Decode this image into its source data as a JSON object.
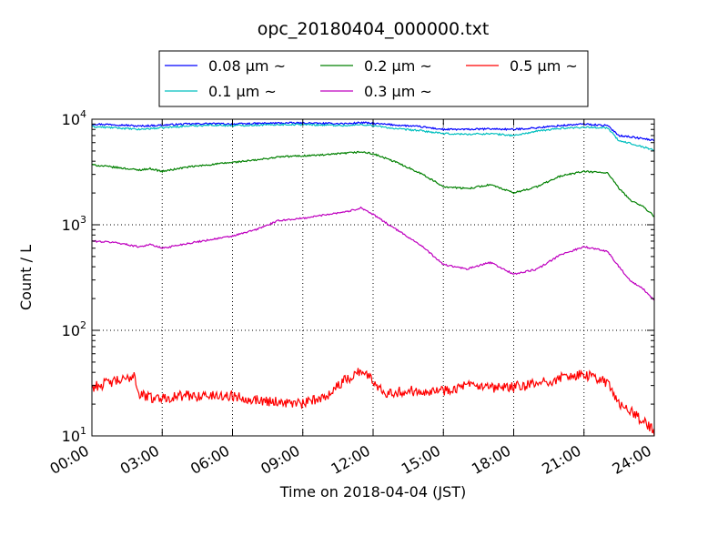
{
  "chart_data": {
    "type": "line",
    "title": "opc_20180404_000000.txt",
    "xlabel": "Time on 2018-04-04 (JST)",
    "ylabel": "Count / L",
    "x_ticks": [
      "00:00",
      "03:00",
      "06:00",
      "09:00",
      "12:00",
      "15:00",
      "18:00",
      "21:00",
      "24:00"
    ],
    "y_scale": "log",
    "y_ticks": [
      {
        "base": "10",
        "exp": "1",
        "value": 10
      },
      {
        "base": "10",
        "exp": "2",
        "value": 100
      },
      {
        "base": "10",
        "exp": "3",
        "value": 1000
      },
      {
        "base": "10",
        "exp": "4",
        "value": 10000
      }
    ],
    "xlim_hours": [
      0,
      24
    ],
    "ylim": [
      10,
      10000
    ],
    "grid": true,
    "legend_position": "top-center",
    "series": [
      {
        "name": "0.08 μm ~",
        "color": "#0000ff",
        "x_hours": [
          0,
          1,
          2,
          3,
          4,
          5,
          6,
          7,
          8,
          9,
          10,
          11,
          11.5,
          12,
          13,
          14,
          15,
          16,
          17,
          18,
          19,
          20,
          21,
          22,
          22.5,
          23,
          24
        ],
        "values": [
          9000,
          8900,
          8600,
          8800,
          9000,
          9100,
          9000,
          9100,
          9200,
          9200,
          9100,
          9100,
          9300,
          9100,
          8800,
          8500,
          8000,
          8000,
          8100,
          8000,
          8300,
          8700,
          9000,
          8700,
          7000,
          6800,
          6300
        ]
      },
      {
        "name": "0.1 μm ~",
        "color": "#00bfbf",
        "x_hours": [
          0,
          1,
          2,
          3,
          4,
          5,
          6,
          7,
          8,
          9,
          10,
          11,
          11.5,
          12,
          13,
          14,
          15,
          16,
          17,
          18,
          19,
          20,
          21,
          22,
          22.5,
          23,
          24
        ],
        "values": [
          8500,
          8300,
          8000,
          8300,
          8600,
          8800,
          8700,
          8800,
          8900,
          8900,
          8800,
          8700,
          8900,
          8700,
          8100,
          7800,
          7300,
          7200,
          7300,
          7000,
          7700,
          8200,
          8400,
          8300,
          6200,
          5900,
          5100
        ]
      },
      {
        "name": "0.2 μm ~",
        "color": "#008000",
        "x_hours": [
          0,
          1,
          2,
          2.5,
          3,
          4,
          5,
          6,
          7,
          8,
          9,
          10,
          11,
          11.5,
          12,
          13,
          14,
          15,
          16,
          17,
          18,
          19,
          20,
          21,
          22,
          22.5,
          23,
          23.5,
          24
        ],
        "values": [
          3700,
          3500,
          3300,
          3400,
          3200,
          3500,
          3700,
          3900,
          4100,
          4400,
          4500,
          4600,
          4800,
          4900,
          4700,
          3900,
          3100,
          2300,
          2200,
          2400,
          2000,
          2300,
          2900,
          3200,
          3100,
          2200,
          1700,
          1500,
          1200
        ]
      },
      {
        "name": "0.3 μm ~",
        "color": "#bf00bf",
        "x_hours": [
          0,
          1,
          2,
          2.5,
          3,
          4,
          5,
          6,
          7,
          8,
          9,
          10,
          11,
          11.5,
          12,
          13,
          14,
          15,
          16,
          17,
          18,
          19,
          20,
          21,
          22,
          22.5,
          23,
          23.5,
          24
        ],
        "values": [
          700,
          680,
          620,
          650,
          600,
          660,
          720,
          780,
          900,
          1100,
          1150,
          1250,
          1350,
          1450,
          1250,
          900,
          650,
          420,
          380,
          440,
          340,
          380,
          520,
          620,
          560,
          400,
          290,
          250,
          190
        ]
      },
      {
        "name": "0.5 μm ~",
        "color": "#ff0000",
        "x_hours": [
          0,
          0.5,
          1,
          1.5,
          1.8,
          2,
          2.5,
          3,
          4,
          5,
          6,
          7,
          8,
          9,
          10,
          10.5,
          11,
          11.5,
          12,
          12.5,
          13,
          14,
          15,
          16,
          17,
          18,
          19,
          20,
          20.5,
          21,
          21.5,
          22,
          22.5,
          23,
          23.5,
          24
        ],
        "values": [
          29,
          31,
          33,
          34,
          39,
          25,
          23,
          23,
          24,
          24,
          24,
          22,
          21,
          20,
          24,
          30,
          36,
          42,
          33,
          26,
          26,
          27,
          27,
          30,
          28,
          29,
          31,
          35,
          38,
          37,
          36,
          32,
          20,
          17,
          14,
          11
        ]
      }
    ]
  }
}
